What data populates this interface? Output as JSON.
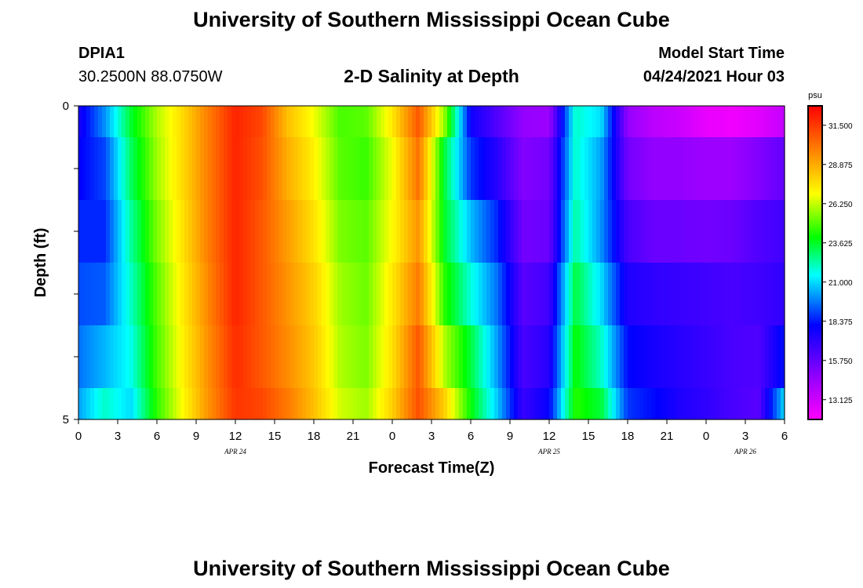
{
  "header": {
    "title": "University of Southern Mississippi Ocean Cube",
    "footer_title": "University of Southern Mississippi Ocean Cube",
    "station_id": "DPIA1",
    "coordinates": "30.2500N  88.0750W",
    "plot_title": "2-D Salinity at Depth",
    "model_label": "Model Start Time",
    "model_time": "04/24/2021 Hour 03"
  },
  "chart_data": {
    "type": "heatmap",
    "title": "2-D Salinity at Depth",
    "xlabel": "Forecast Time(Z)",
    "ylabel": "Depth (ft)",
    "ylim": [
      0,
      5
    ],
    "y_tick_labels": [
      "0",
      "5"
    ],
    "x_tick_labels": [
      "0",
      "3",
      "6",
      "9",
      "12",
      "15",
      "18",
      "21",
      "0",
      "3",
      "6",
      "9",
      "12",
      "15",
      "18",
      "21",
      "0",
      "3",
      "6"
    ],
    "date_labels": [
      {
        "text": "APR 24",
        "hour": 12
      },
      {
        "text": "APR 25",
        "hour": 36
      },
      {
        "text": "APR 26",
        "hour": 51
      }
    ],
    "colorbar": {
      "unit": "psu",
      "min": 11.8,
      "max": 32.8,
      "tick_labels": [
        "31.500",
        "28.875",
        "26.250",
        "23.625",
        "21.000",
        "18.375",
        "15.750",
        "13.125"
      ],
      "colors": [
        "#ff00ff",
        "#a000ff",
        "#0000ff",
        "#00ffff",
        "#00ff00",
        "#ffff00",
        "#ff8000",
        "#ff0000"
      ]
    },
    "x_hours": [
      0,
      2,
      4,
      6,
      8,
      10,
      12,
      14,
      16,
      18,
      20,
      22,
      24,
      26,
      28,
      30,
      32,
      34,
      36,
      38,
      40,
      42,
      44,
      46,
      48,
      50,
      52,
      54
    ],
    "depth_bins": [
      "0-0.5",
      "0.5-1.5",
      "1.5-2.5",
      "2.5-3.5",
      "3.5-4.5",
      "4.5-5"
    ],
    "salinity_profiles": [
      [
        17.5,
        18.0,
        18.6,
        19.1,
        19.6,
        20.2
      ],
      [
        20.0,
        19.0,
        18.6,
        19.3,
        20.5,
        22.0
      ],
      [
        23.5,
        23.0,
        22.4,
        22.0,
        21.6,
        21.0
      ],
      [
        26.0,
        25.8,
        25.4,
        25.0,
        24.8,
        24.5
      ],
      [
        27.8,
        27.8,
        27.6,
        27.4,
        27.2,
        27.0
      ],
      [
        30.0,
        30.0,
        30.0,
        29.8,
        29.6,
        29.5
      ],
      [
        32.0,
        32.0,
        32.0,
        32.0,
        31.8,
        31.6
      ],
      [
        31.2,
        31.0,
        30.8,
        30.8,
        30.8,
        31.2
      ],
      [
        28.4,
        28.8,
        29.2,
        29.4,
        29.6,
        30.0
      ],
      [
        26.8,
        27.2,
        27.6,
        28.0,
        28.2,
        28.4
      ],
      [
        24.8,
        25.0,
        25.4,
        25.8,
        26.0,
        26.4
      ],
      [
        25.0,
        24.6,
        25.0,
        25.2,
        25.4,
        25.8
      ],
      [
        27.4,
        26.8,
        27.0,
        27.4,
        27.6,
        28.0
      ],
      [
        30.8,
        30.2,
        29.4,
        30.0,
        30.8,
        31.0
      ],
      [
        25.6,
        23.4,
        23.6,
        24.4,
        26.0,
        28.0
      ],
      [
        17.8,
        18.8,
        20.6,
        21.8,
        23.4,
        24.0
      ],
      [
        16.2,
        17.2,
        18.6,
        19.6,
        20.2,
        20.8
      ],
      [
        14.6,
        15.0,
        15.4,
        16.0,
        16.4,
        16.8
      ],
      [
        14.4,
        15.4,
        15.6,
        16.6,
        17.2,
        18.0
      ],
      [
        22.0,
        22.0,
        22.4,
        23.4,
        24.0,
        24.4
      ],
      [
        21.0,
        20.2,
        20.0,
        21.0,
        22.0,
        23.4
      ],
      [
        14.6,
        15.4,
        16.4,
        17.4,
        18.2,
        18.8
      ],
      [
        13.6,
        14.6,
        15.6,
        17.0,
        17.6,
        18.2
      ],
      [
        13.2,
        14.6,
        15.6,
        16.8,
        17.2,
        17.4
      ],
      [
        12.4,
        14.4,
        15.4,
        16.6,
        16.8,
        17.0
      ],
      [
        12.2,
        14.4,
        15.6,
        16.4,
        16.4,
        16.4
      ],
      [
        12.6,
        15.0,
        16.2,
        16.6,
        16.2,
        16.0
      ],
      [
        13.4,
        15.8,
        16.6,
        17.0,
        18.4,
        21.0
      ]
    ]
  }
}
